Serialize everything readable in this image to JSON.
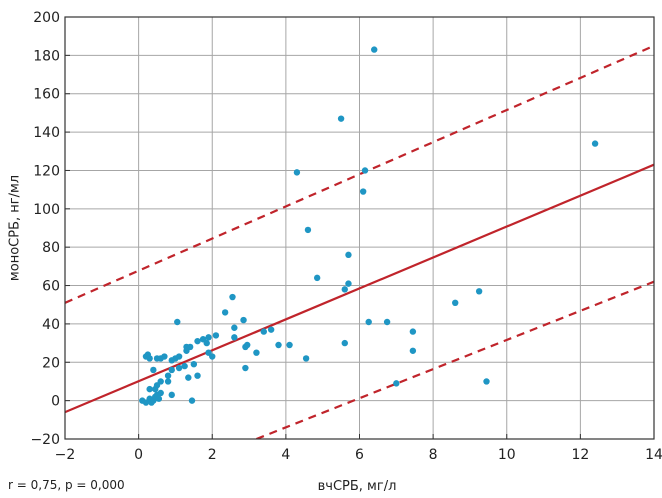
{
  "chart_data": {
    "type": "scatter",
    "xlabel": "вчСРБ, мг/л",
    "ylabel": "моноСРБ, нг/мл",
    "xlim": [
      -2,
      14
    ],
    "ylim": [
      -20,
      200
    ],
    "x_ticks": [
      -2,
      0,
      2,
      4,
      6,
      8,
      10,
      12,
      14
    ],
    "y_ticks": [
      -20,
      0,
      20,
      40,
      60,
      80,
      100,
      120,
      140,
      160,
      180,
      200
    ],
    "x_tick_labels": [
      "−2",
      "0",
      "2",
      "4",
      "6",
      "8",
      "10",
      "12",
      "14"
    ],
    "y_tick_labels": [
      "−20",
      "0",
      "20",
      "40",
      "60",
      "80",
      "100",
      "120",
      "140",
      "160",
      "180",
      "200"
    ],
    "grid": true,
    "annotation": "r = 0,75, p = 0,000",
    "colors": {
      "points": "#1f96c4",
      "regression": "#c0242b",
      "grid": "#a6a6a6",
      "axes": "#333333"
    },
    "regression_line": {
      "x": [
        -2,
        14
      ],
      "y": [
        -6,
        123
      ],
      "style": "solid"
    },
    "confidence_bounds": [
      {
        "x": [
          -2,
          14
        ],
        "y": [
          51,
          185
        ],
        "style": "dashed"
      },
      {
        "x": [
          3.2,
          14
        ],
        "y": [
          -20,
          62
        ],
        "style": "dashed"
      }
    ],
    "points": [
      [
        0.1,
        0
      ],
      [
        0.2,
        -1
      ],
      [
        0.3,
        1
      ],
      [
        0.35,
        -1
      ],
      [
        0.4,
        0
      ],
      [
        0.45,
        2
      ],
      [
        0.5,
        3
      ],
      [
        0.55,
        1
      ],
      [
        0.6,
        4
      ],
      [
        0.3,
        6
      ],
      [
        0.45,
        6
      ],
      [
        0.5,
        8
      ],
      [
        0.6,
        10
      ],
      [
        0.8,
        10
      ],
      [
        0.4,
        16
      ],
      [
        0.8,
        13
      ],
      [
        0.9,
        16
      ],
      [
        1.1,
        17
      ],
      [
        1.25,
        18
      ],
      [
        1.5,
        19
      ],
      [
        1.35,
        12
      ],
      [
        1.6,
        13
      ],
      [
        0.9,
        3
      ],
      [
        1.45,
        0
      ],
      [
        0.2,
        23
      ],
      [
        0.25,
        24
      ],
      [
        0.3,
        22
      ],
      [
        0.5,
        22
      ],
      [
        0.6,
        22
      ],
      [
        0.7,
        23
      ],
      [
        0.9,
        21
      ],
      [
        1.0,
        22
      ],
      [
        1.1,
        23
      ],
      [
        1.3,
        26
      ],
      [
        1.4,
        28
      ],
      [
        1.6,
        31
      ],
      [
        1.75,
        32
      ],
      [
        1.9,
        33
      ],
      [
        1.9,
        25
      ],
      [
        2.0,
        23
      ],
      [
        1.85,
        30
      ],
      [
        2.1,
        34
      ],
      [
        2.35,
        46
      ],
      [
        2.55,
        54
      ],
      [
        2.6,
        33
      ],
      [
        2.6,
        38
      ],
      [
        2.85,
        42
      ],
      [
        2.9,
        17
      ],
      [
        2.9,
        28
      ],
      [
        2.95,
        29
      ],
      [
        3.2,
        25
      ],
      [
        3.4,
        36
      ],
      [
        3.6,
        37
      ],
      [
        3.8,
        29
      ],
      [
        4.1,
        29
      ],
      [
        4.3,
        119
      ],
      [
        4.55,
        22
      ],
      [
        4.6,
        89
      ],
      [
        4.85,
        64
      ],
      [
        1.05,
        41
      ],
      [
        1.3,
        28
      ],
      [
        5.5,
        147
      ],
      [
        5.6,
        30
      ],
      [
        5.6,
        58
      ],
      [
        5.7,
        61
      ],
      [
        5.7,
        76
      ],
      [
        6.1,
        109
      ],
      [
        6.15,
        120
      ],
      [
        6.25,
        41
      ],
      [
        6.4,
        183
      ],
      [
        6.75,
        41
      ],
      [
        7.0,
        9
      ],
      [
        7.45,
        26
      ],
      [
        7.45,
        36
      ],
      [
        8.6,
        51
      ],
      [
        9.25,
        57
      ],
      [
        9.45,
        10
      ],
      [
        12.4,
        134
      ]
    ]
  }
}
